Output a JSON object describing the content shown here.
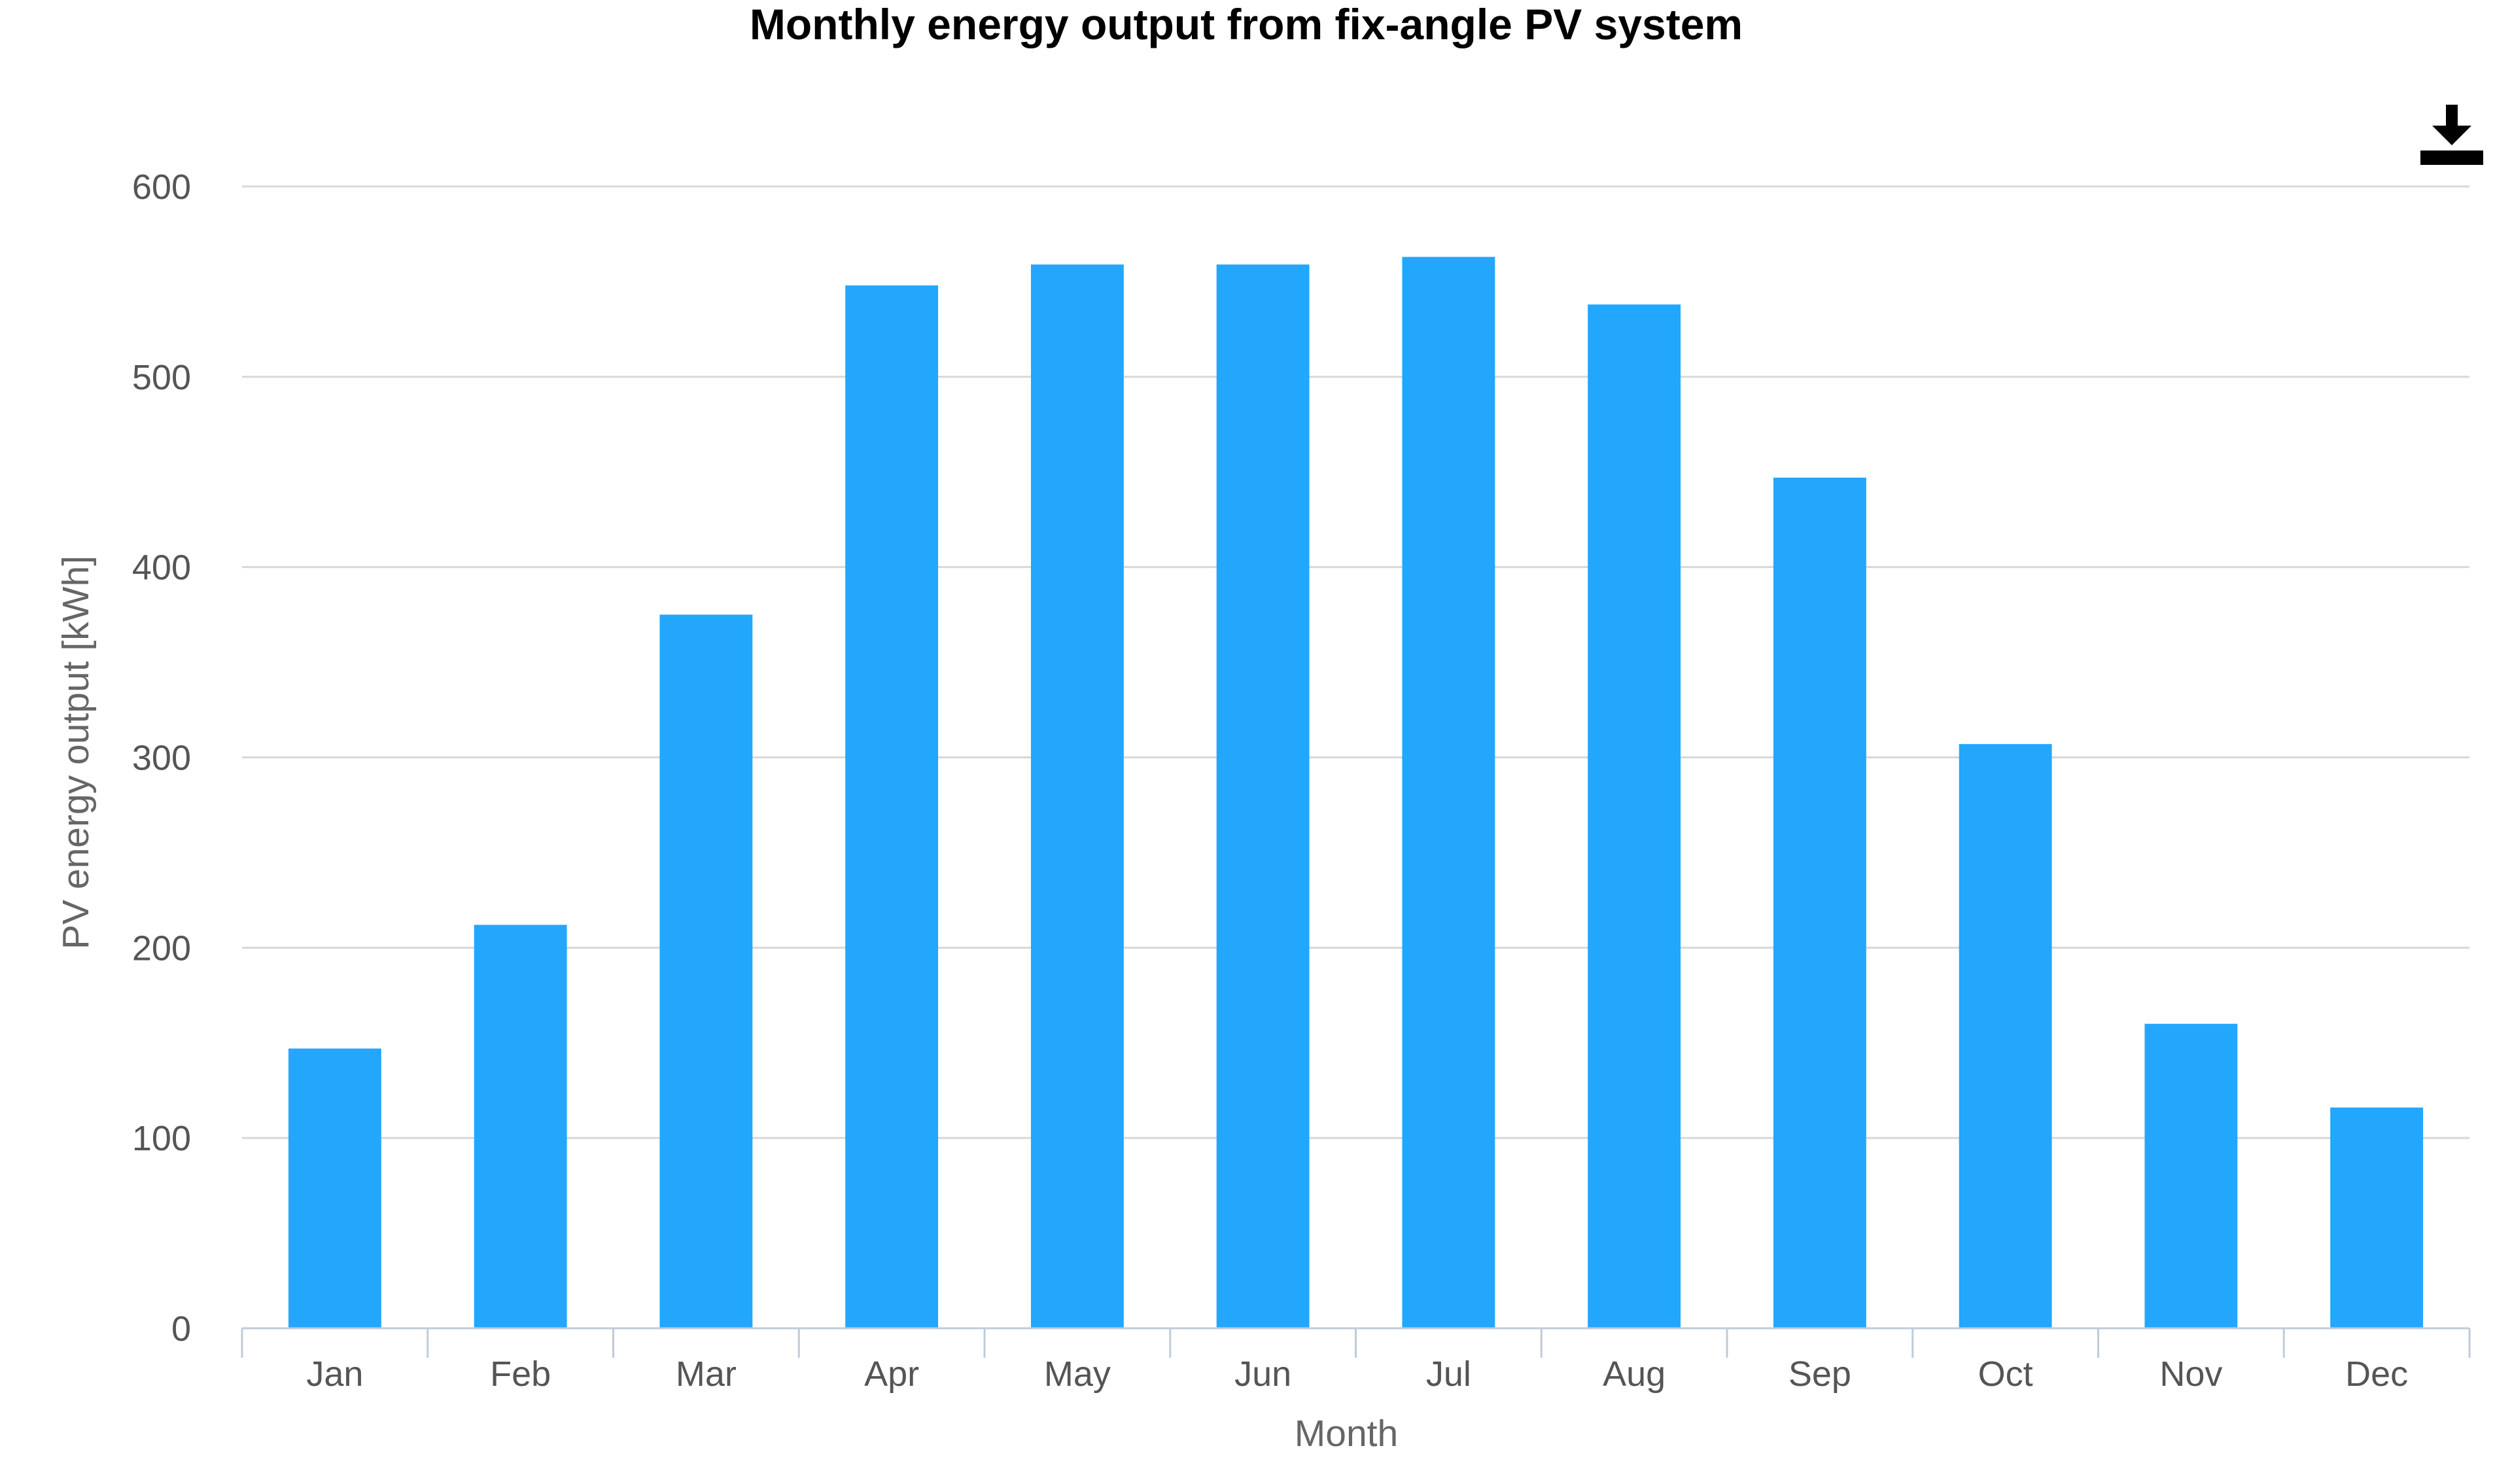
{
  "colors": {
    "bar": "#22a7fc",
    "gridline": "#d8d8d8",
    "axis": "#c0cbd8",
    "icon": "#000000"
  },
  "toolbar": {
    "download_icon": "download-icon"
  },
  "chart_data": {
    "type": "bar",
    "title": "Monthly energy output from fix-angle PV system",
    "xlabel": "Month",
    "ylabel": "PV energy output [kWh]",
    "ylim": [
      0,
      600
    ],
    "yticks": [
      0,
      100,
      200,
      300,
      400,
      500,
      600
    ],
    "grid": true,
    "legend": "none",
    "categories": [
      "Jan",
      "Feb",
      "Mar",
      "Apr",
      "May",
      "Jun",
      "Jul",
      "Aug",
      "Sep",
      "Oct",
      "Nov",
      "Dec"
    ],
    "series": [
      {
        "values": [
          147,
          212,
          375,
          548,
          559,
          559,
          563,
          538,
          447,
          307,
          160,
          116
        ]
      }
    ]
  }
}
